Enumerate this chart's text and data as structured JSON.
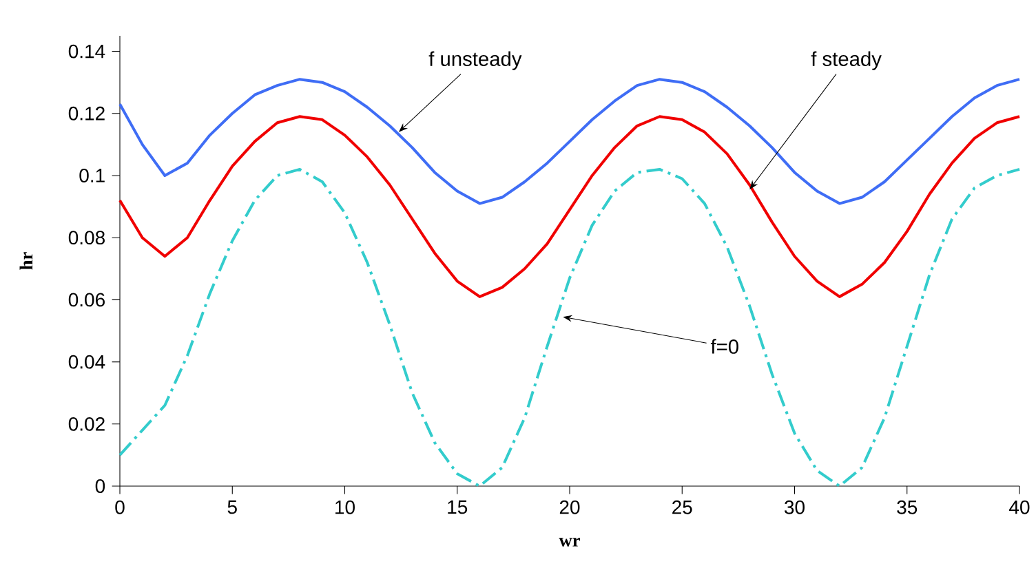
{
  "chart_data": {
    "type": "line",
    "xlabel": "wr",
    "ylabel": "hr",
    "x": [
      0,
      1,
      2,
      3,
      4,
      5,
      6,
      7,
      8,
      9,
      10,
      11,
      12,
      13,
      14,
      15,
      16,
      17,
      18,
      19,
      20,
      21,
      22,
      23,
      24,
      25,
      26,
      27,
      28,
      29,
      30,
      31,
      32,
      33,
      34,
      35,
      36,
      37,
      38,
      39,
      40
    ],
    "xlim": [
      0,
      40
    ],
    "xticks": [
      0,
      5,
      10,
      15,
      20,
      25,
      30,
      35,
      40
    ],
    "ylim": [
      0,
      0.145
    ],
    "yticks": [
      0,
      0.02,
      0.04,
      0.06,
      0.08,
      {
        "value": 0.1,
        "label": "0.1"
      },
      0.12,
      0.14
    ],
    "grid": false,
    "legend": false,
    "series": [
      {
        "name": "f unsteady",
        "color": "#3f6df5",
        "line_style": "solid",
        "values": [
          0.123,
          0.11,
          0.1,
          0.104,
          0.113,
          0.12,
          0.126,
          0.129,
          0.131,
          0.13,
          0.127,
          0.122,
          0.116,
          0.109,
          0.101,
          0.095,
          0.091,
          0.093,
          0.098,
          0.104,
          0.111,
          0.118,
          0.124,
          0.129,
          0.131,
          0.13,
          0.127,
          0.122,
          0.116,
          0.109,
          0.101,
          0.095,
          0.091,
          0.093,
          0.098,
          0.105,
          0.112,
          0.119,
          0.125,
          0.129,
          0.131
        ]
      },
      {
        "name": "f steady",
        "color": "#f00000",
        "line_style": "solid",
        "values": [
          0.092,
          0.08,
          0.074,
          0.08,
          0.092,
          0.103,
          0.111,
          0.117,
          0.119,
          0.118,
          0.113,
          0.106,
          0.097,
          0.086,
          0.075,
          0.066,
          0.061,
          0.064,
          0.07,
          0.078,
          0.089,
          0.1,
          0.109,
          0.116,
          0.119,
          0.118,
          0.114,
          0.107,
          0.097,
          0.085,
          0.074,
          0.066,
          0.061,
          0.065,
          0.072,
          0.082,
          0.094,
          0.104,
          0.112,
          0.117,
          0.119
        ]
      },
      {
        "name": "f=0",
        "color": "#33cccc",
        "line_style": "dashed",
        "values": [
          0.01,
          0.018,
          0.026,
          0.042,
          0.062,
          0.079,
          0.092,
          0.1,
          0.102,
          0.098,
          0.088,
          0.072,
          0.052,
          0.03,
          0.014,
          0.004,
          0.0,
          0.006,
          0.022,
          0.045,
          0.067,
          0.084,
          0.095,
          0.101,
          0.102,
          0.099,
          0.091,
          0.077,
          0.058,
          0.036,
          0.017,
          0.005,
          0.0,
          0.006,
          0.022,
          0.045,
          0.068,
          0.086,
          0.096,
          0.1,
          0.102
        ]
      }
    ]
  }
}
